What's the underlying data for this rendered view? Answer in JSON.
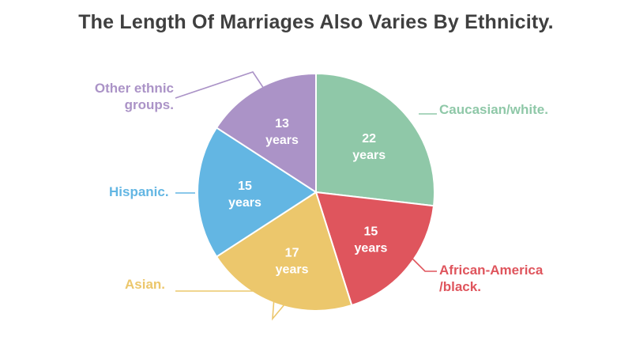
{
  "chart_data": {
    "type": "pie",
    "title": "The Length Of Marriages Also Varies By Ethnicity.",
    "slices": [
      {
        "name": "Caucasian/white.",
        "label_lines": [
          "Caucasian/white."
        ],
        "value": 22,
        "value_lines": [
          "22",
          "years"
        ],
        "color": "#8fc8a8"
      },
      {
        "name": "African-America /black.",
        "label_lines": [
          "African-America",
          "/black."
        ],
        "value": 15,
        "value_lines": [
          "15",
          "years"
        ],
        "color": "#df555d"
      },
      {
        "name": "Asian.",
        "label_lines": [
          "Asian."
        ],
        "value": 17,
        "value_lines": [
          "17",
          "years"
        ],
        "color": "#ecc76c"
      },
      {
        "name": "Hispanic.",
        "label_lines": [
          "Hispanic."
        ],
        "value": 15,
        "value_lines": [
          "15",
          "years"
        ],
        "color": "#63b6e3"
      },
      {
        "name": "Other ethnic groups.",
        "label_lines": [
          "Other ethnic",
          "groups."
        ],
        "value": 13,
        "value_lines": [
          "13",
          "years"
        ],
        "color": "#ab93c7"
      }
    ]
  }
}
